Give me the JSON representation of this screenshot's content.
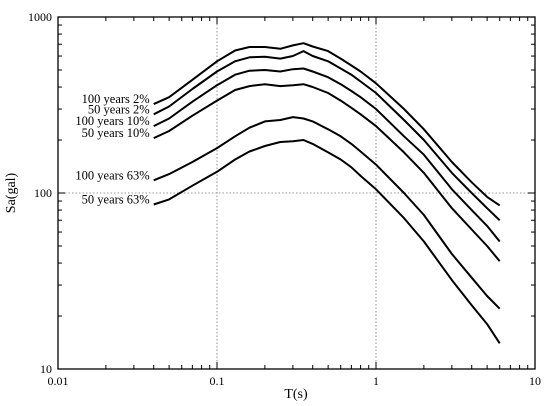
{
  "chart_data": {
    "type": "line",
    "x_scale": "log",
    "y_scale": "log",
    "xlim": [
      0.01,
      10
    ],
    "ylim": [
      10,
      1000
    ],
    "xlabel": "T(s)",
    "ylabel": "Sa(gal)",
    "grid": true,
    "x_tick_labels": [
      "0.01",
      "0.1",
      "1",
      "10"
    ],
    "y_tick_labels": [
      "10",
      "100",
      "1000"
    ],
    "series": [
      {
        "name": "100 years 2%",
        "x": [
          0.04,
          0.05,
          0.07,
          0.1,
          0.13,
          0.16,
          0.2,
          0.25,
          0.3,
          0.35,
          0.4,
          0.5,
          0.6,
          0.7,
          0.8,
          1.0,
          1.5,
          2.0,
          3.0,
          4.0,
          5.0,
          6.0
        ],
        "y": [
          320,
          350,
          440,
          560,
          645,
          675,
          675,
          660,
          690,
          710,
          680,
          640,
          580,
          530,
          490,
          420,
          300,
          230,
          150,
          115,
          95,
          85
        ]
      },
      {
        "name": "50 years 2%",
        "x": [
          0.04,
          0.05,
          0.07,
          0.1,
          0.13,
          0.16,
          0.2,
          0.25,
          0.3,
          0.35,
          0.4,
          0.5,
          0.6,
          0.7,
          0.8,
          1.0,
          1.5,
          2.0,
          3.0,
          4.0,
          5.0,
          6.0
        ],
        "y": [
          280,
          310,
          390,
          490,
          560,
          590,
          595,
          580,
          600,
          640,
          600,
          560,
          510,
          470,
          430,
          370,
          260,
          200,
          130,
          100,
          82,
          70
        ]
      },
      {
        "name": "100 years 10%",
        "x": [
          0.04,
          0.05,
          0.07,
          0.1,
          0.13,
          0.16,
          0.2,
          0.25,
          0.3,
          0.35,
          0.4,
          0.5,
          0.6,
          0.7,
          0.8,
          1.0,
          1.5,
          2.0,
          3.0,
          4.0,
          5.0,
          6.0
        ],
        "y": [
          240,
          265,
          330,
          410,
          470,
          495,
          500,
          490,
          505,
          510,
          490,
          455,
          415,
          380,
          350,
          300,
          210,
          165,
          105,
          80,
          65,
          53
        ]
      },
      {
        "name": "50 years 10%",
        "x": [
          0.04,
          0.05,
          0.07,
          0.1,
          0.13,
          0.16,
          0.2,
          0.25,
          0.3,
          0.35,
          0.4,
          0.5,
          0.6,
          0.7,
          0.8,
          1.0,
          1.5,
          2.0,
          3.0,
          4.0,
          5.0,
          6.0
        ],
        "y": [
          205,
          225,
          275,
          335,
          385,
          405,
          415,
          405,
          410,
          415,
          400,
          370,
          335,
          305,
          280,
          240,
          170,
          130,
          82,
          62,
          50,
          41
        ]
      },
      {
        "name": "100 years 63%",
        "x": [
          0.04,
          0.05,
          0.07,
          0.1,
          0.13,
          0.16,
          0.2,
          0.25,
          0.3,
          0.35,
          0.4,
          0.5,
          0.6,
          0.7,
          0.8,
          1.0,
          1.5,
          2.0,
          3.0,
          4.0,
          5.0,
          6.0
        ],
        "y": [
          118,
          128,
          150,
          180,
          210,
          235,
          255,
          260,
          270,
          265,
          255,
          230,
          210,
          190,
          172,
          145,
          100,
          75,
          45,
          33,
          26,
          22
        ]
      },
      {
        "name": "50 years 63%",
        "x": [
          0.04,
          0.05,
          0.07,
          0.1,
          0.13,
          0.16,
          0.2,
          0.25,
          0.3,
          0.35,
          0.4,
          0.5,
          0.6,
          0.7,
          0.8,
          1.0,
          1.5,
          2.0,
          3.0,
          4.0,
          5.0,
          6.0
        ],
        "y": [
          86,
          92,
          110,
          132,
          155,
          172,
          185,
          195,
          197,
          200,
          190,
          170,
          155,
          140,
          125,
          105,
          72,
          53,
          32,
          23,
          18,
          14
        ]
      }
    ]
  }
}
